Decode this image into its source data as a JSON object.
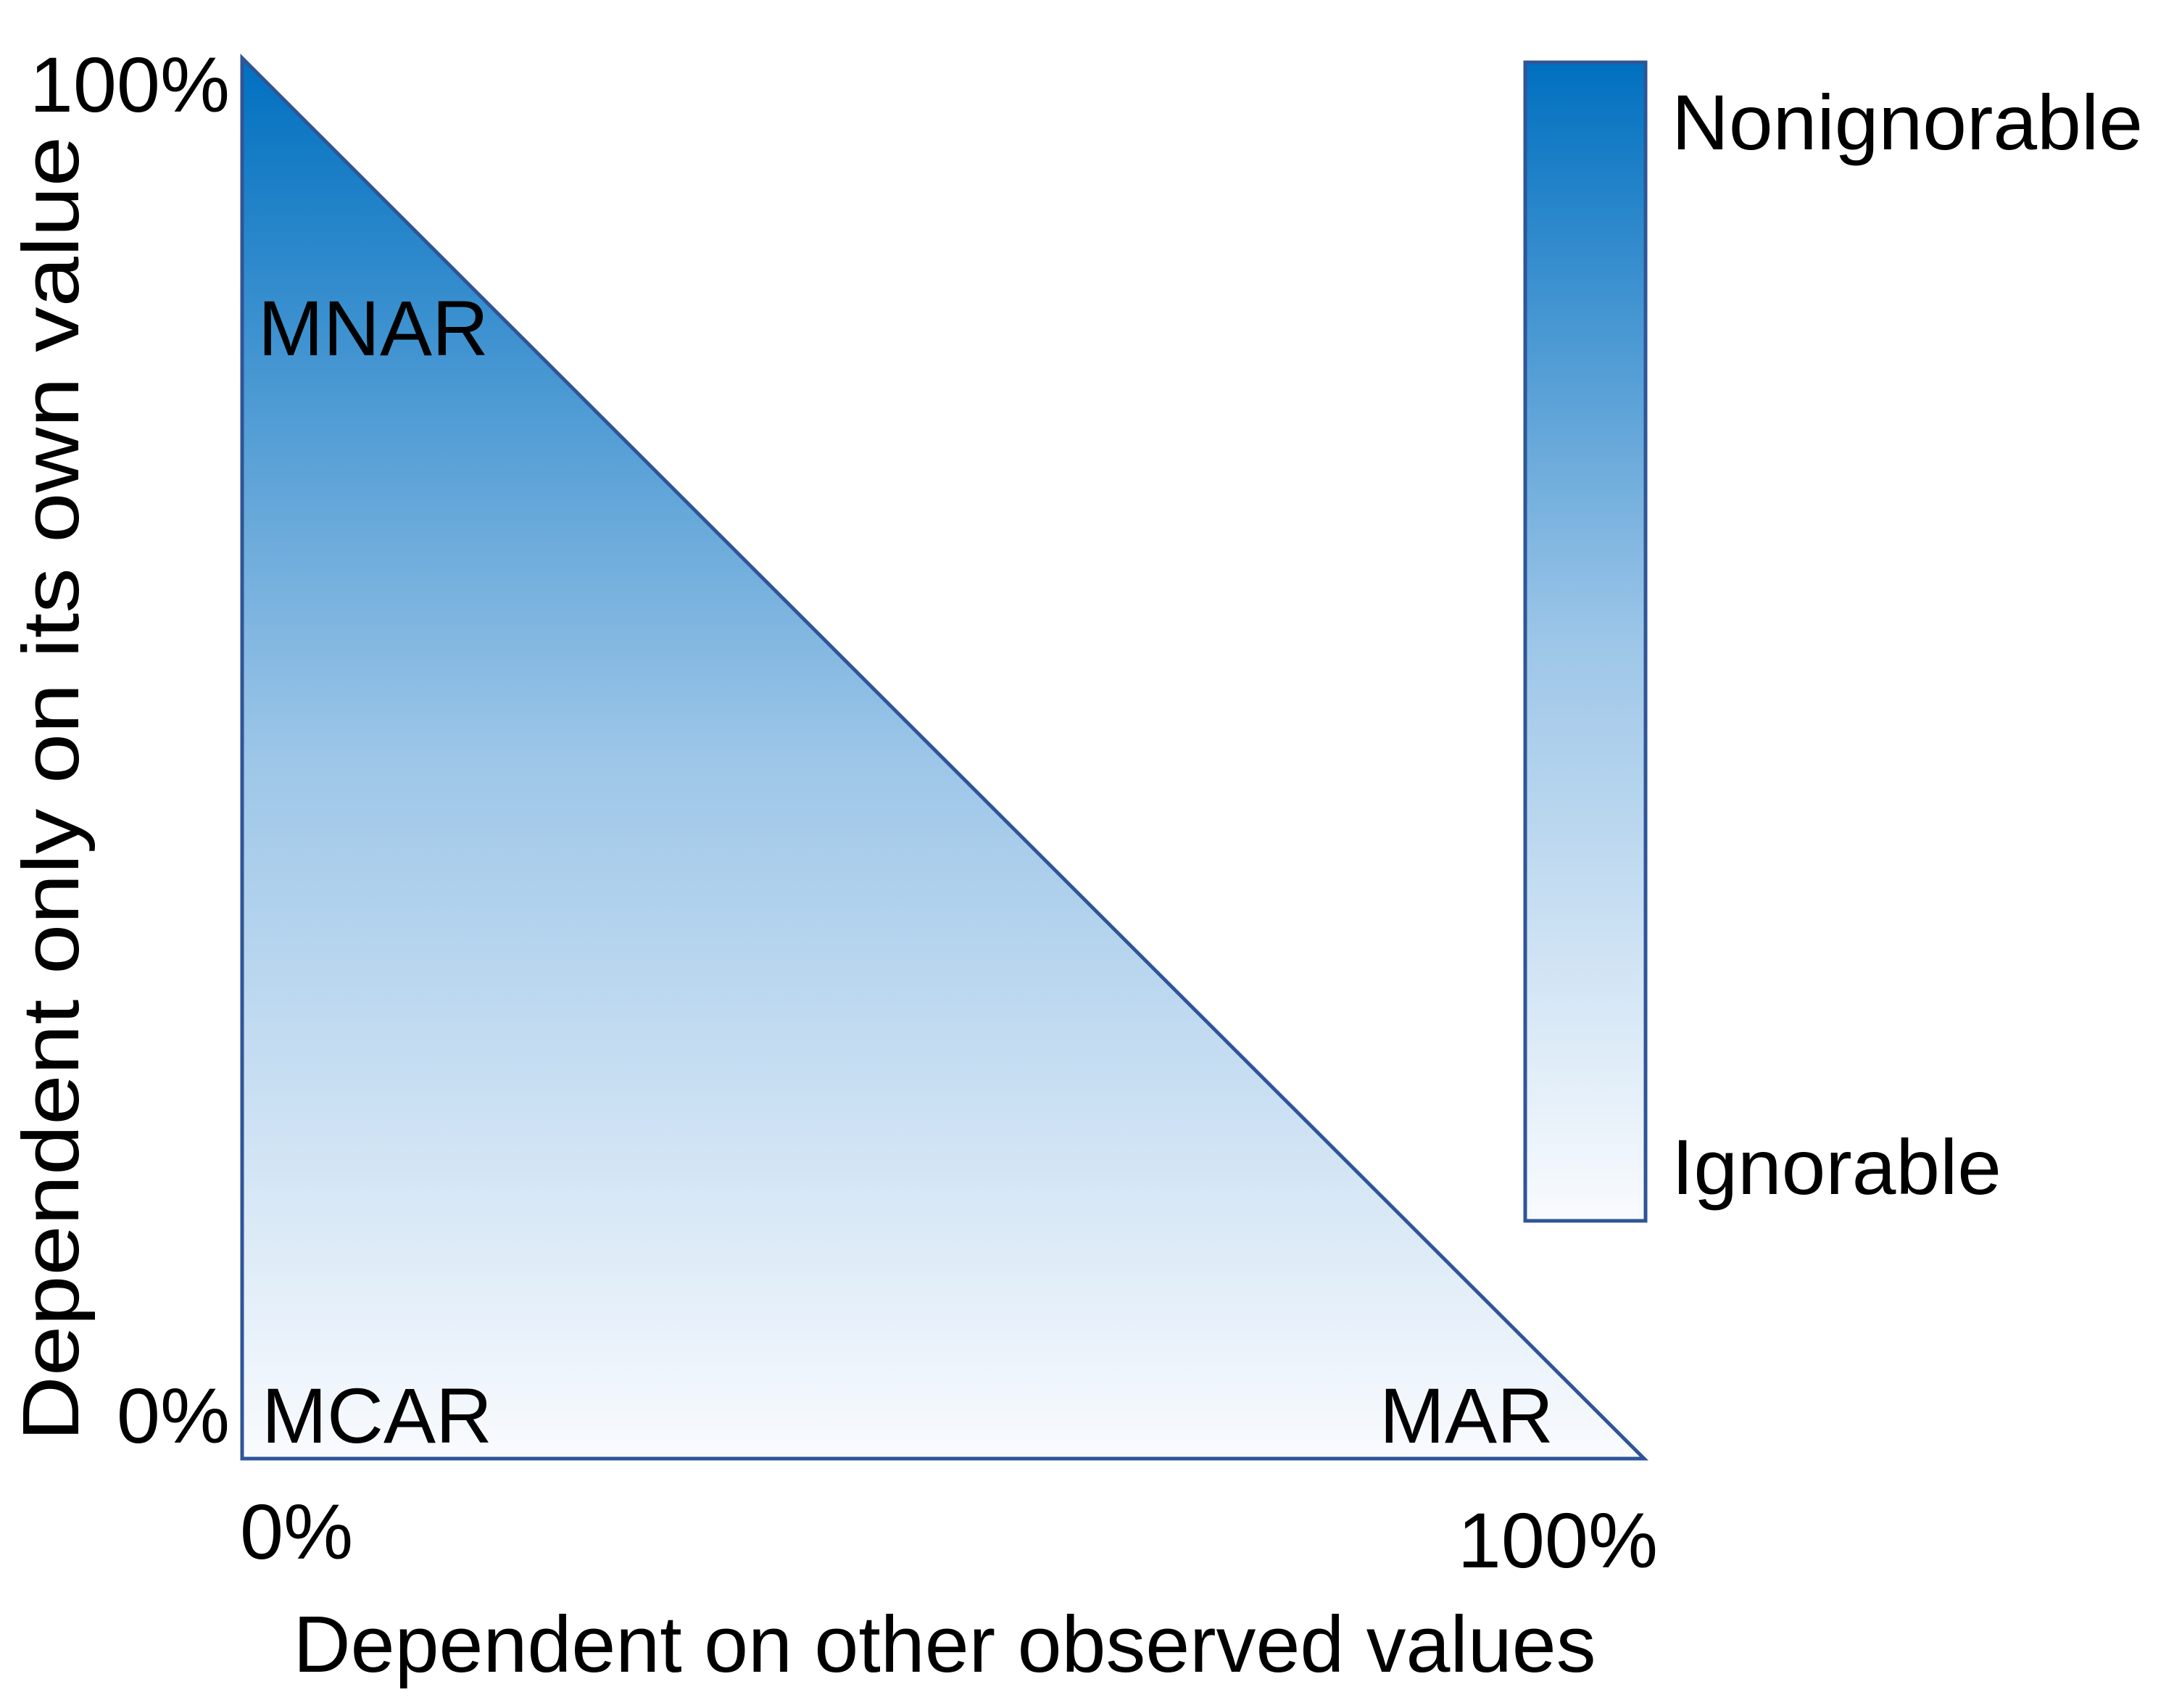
{
  "colors": {
    "gradient_top": "#0070C0",
    "gradient_bottom": "#F9FBFE",
    "outline": "#2F5597"
  },
  "y_axis": {
    "label": "Dependent only on its own value",
    "tick_top": "100%",
    "tick_bottom": "0%"
  },
  "x_axis": {
    "label": "Dependent on other observed values",
    "tick_left": "0%",
    "tick_right": "100%"
  },
  "regions": {
    "top": "MNAR",
    "bottom_left": "MCAR",
    "bottom_right": "MAR"
  },
  "legend": {
    "high": "Nonignorable",
    "low": "Ignorable"
  }
}
